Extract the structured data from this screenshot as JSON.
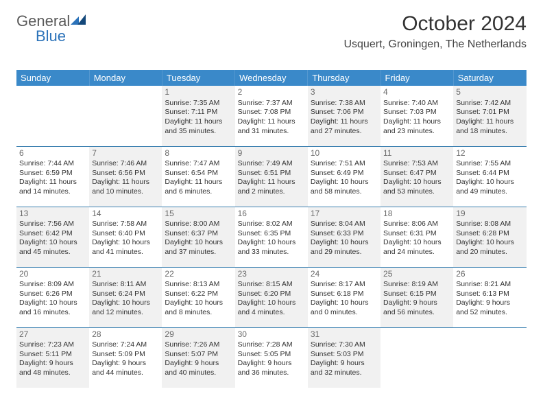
{
  "logo": {
    "part1": "General",
    "part2": "Blue"
  },
  "title": "October 2024",
  "location": "Usquert, Groningen, The Netherlands",
  "weekdays": [
    "Sunday",
    "Monday",
    "Tuesday",
    "Wednesday",
    "Thursday",
    "Friday",
    "Saturday"
  ],
  "colors": {
    "header_bg": "#3a89c9",
    "header_text": "#ffffff",
    "row_border": "#3a7fb0",
    "shade_bg": "#f1f1f1",
    "logo_gray": "#5a5a5a",
    "logo_blue": "#2b72b9"
  },
  "weeks": [
    [
      {
        "day": "",
        "sunrise": "",
        "sunset": "",
        "daylight": "",
        "shade": false,
        "empty": true
      },
      {
        "day": "",
        "sunrise": "",
        "sunset": "",
        "daylight": "",
        "shade": false,
        "empty": true
      },
      {
        "day": "1",
        "sunrise": "Sunrise: 7:35 AM",
        "sunset": "Sunset: 7:11 PM",
        "daylight": "Daylight: 11 hours and 35 minutes.",
        "shade": true
      },
      {
        "day": "2",
        "sunrise": "Sunrise: 7:37 AM",
        "sunset": "Sunset: 7:08 PM",
        "daylight": "Daylight: 11 hours and 31 minutes.",
        "shade": false
      },
      {
        "day": "3",
        "sunrise": "Sunrise: 7:38 AM",
        "sunset": "Sunset: 7:06 PM",
        "daylight": "Daylight: 11 hours and 27 minutes.",
        "shade": true
      },
      {
        "day": "4",
        "sunrise": "Sunrise: 7:40 AM",
        "sunset": "Sunset: 7:03 PM",
        "daylight": "Daylight: 11 hours and 23 minutes.",
        "shade": false
      },
      {
        "day": "5",
        "sunrise": "Sunrise: 7:42 AM",
        "sunset": "Sunset: 7:01 PM",
        "daylight": "Daylight: 11 hours and 18 minutes.",
        "shade": true
      }
    ],
    [
      {
        "day": "6",
        "sunrise": "Sunrise: 7:44 AM",
        "sunset": "Sunset: 6:59 PM",
        "daylight": "Daylight: 11 hours and 14 minutes.",
        "shade": false
      },
      {
        "day": "7",
        "sunrise": "Sunrise: 7:46 AM",
        "sunset": "Sunset: 6:56 PM",
        "daylight": "Daylight: 11 hours and 10 minutes.",
        "shade": true
      },
      {
        "day": "8",
        "sunrise": "Sunrise: 7:47 AM",
        "sunset": "Sunset: 6:54 PM",
        "daylight": "Daylight: 11 hours and 6 minutes.",
        "shade": false
      },
      {
        "day": "9",
        "sunrise": "Sunrise: 7:49 AM",
        "sunset": "Sunset: 6:51 PM",
        "daylight": "Daylight: 11 hours and 2 minutes.",
        "shade": true
      },
      {
        "day": "10",
        "sunrise": "Sunrise: 7:51 AM",
        "sunset": "Sunset: 6:49 PM",
        "daylight": "Daylight: 10 hours and 58 minutes.",
        "shade": false
      },
      {
        "day": "11",
        "sunrise": "Sunrise: 7:53 AM",
        "sunset": "Sunset: 6:47 PM",
        "daylight": "Daylight: 10 hours and 53 minutes.",
        "shade": true
      },
      {
        "day": "12",
        "sunrise": "Sunrise: 7:55 AM",
        "sunset": "Sunset: 6:44 PM",
        "daylight": "Daylight: 10 hours and 49 minutes.",
        "shade": false
      }
    ],
    [
      {
        "day": "13",
        "sunrise": "Sunrise: 7:56 AM",
        "sunset": "Sunset: 6:42 PM",
        "daylight": "Daylight: 10 hours and 45 minutes.",
        "shade": true
      },
      {
        "day": "14",
        "sunrise": "Sunrise: 7:58 AM",
        "sunset": "Sunset: 6:40 PM",
        "daylight": "Daylight: 10 hours and 41 minutes.",
        "shade": false
      },
      {
        "day": "15",
        "sunrise": "Sunrise: 8:00 AM",
        "sunset": "Sunset: 6:37 PM",
        "daylight": "Daylight: 10 hours and 37 minutes.",
        "shade": true
      },
      {
        "day": "16",
        "sunrise": "Sunrise: 8:02 AM",
        "sunset": "Sunset: 6:35 PM",
        "daylight": "Daylight: 10 hours and 33 minutes.",
        "shade": false
      },
      {
        "day": "17",
        "sunrise": "Sunrise: 8:04 AM",
        "sunset": "Sunset: 6:33 PM",
        "daylight": "Daylight: 10 hours and 29 minutes.",
        "shade": true
      },
      {
        "day": "18",
        "sunrise": "Sunrise: 8:06 AM",
        "sunset": "Sunset: 6:31 PM",
        "daylight": "Daylight: 10 hours and 24 minutes.",
        "shade": false
      },
      {
        "day": "19",
        "sunrise": "Sunrise: 8:08 AM",
        "sunset": "Sunset: 6:28 PM",
        "daylight": "Daylight: 10 hours and 20 minutes.",
        "shade": true
      }
    ],
    [
      {
        "day": "20",
        "sunrise": "Sunrise: 8:09 AM",
        "sunset": "Sunset: 6:26 PM",
        "daylight": "Daylight: 10 hours and 16 minutes.",
        "shade": false
      },
      {
        "day": "21",
        "sunrise": "Sunrise: 8:11 AM",
        "sunset": "Sunset: 6:24 PM",
        "daylight": "Daylight: 10 hours and 12 minutes.",
        "shade": true
      },
      {
        "day": "22",
        "sunrise": "Sunrise: 8:13 AM",
        "sunset": "Sunset: 6:22 PM",
        "daylight": "Daylight: 10 hours and 8 minutes.",
        "shade": false
      },
      {
        "day": "23",
        "sunrise": "Sunrise: 8:15 AM",
        "sunset": "Sunset: 6:20 PM",
        "daylight": "Daylight: 10 hours and 4 minutes.",
        "shade": true
      },
      {
        "day": "24",
        "sunrise": "Sunrise: 8:17 AM",
        "sunset": "Sunset: 6:18 PM",
        "daylight": "Daylight: 10 hours and 0 minutes.",
        "shade": false
      },
      {
        "day": "25",
        "sunrise": "Sunrise: 8:19 AM",
        "sunset": "Sunset: 6:15 PM",
        "daylight": "Daylight: 9 hours and 56 minutes.",
        "shade": true
      },
      {
        "day": "26",
        "sunrise": "Sunrise: 8:21 AM",
        "sunset": "Sunset: 6:13 PM",
        "daylight": "Daylight: 9 hours and 52 minutes.",
        "shade": false
      }
    ],
    [
      {
        "day": "27",
        "sunrise": "Sunrise: 7:23 AM",
        "sunset": "Sunset: 5:11 PM",
        "daylight": "Daylight: 9 hours and 48 minutes.",
        "shade": true
      },
      {
        "day": "28",
        "sunrise": "Sunrise: 7:24 AM",
        "sunset": "Sunset: 5:09 PM",
        "daylight": "Daylight: 9 hours and 44 minutes.",
        "shade": false
      },
      {
        "day": "29",
        "sunrise": "Sunrise: 7:26 AM",
        "sunset": "Sunset: 5:07 PM",
        "daylight": "Daylight: 9 hours and 40 minutes.",
        "shade": true
      },
      {
        "day": "30",
        "sunrise": "Sunrise: 7:28 AM",
        "sunset": "Sunset: 5:05 PM",
        "daylight": "Daylight: 9 hours and 36 minutes.",
        "shade": false
      },
      {
        "day": "31",
        "sunrise": "Sunrise: 7:30 AM",
        "sunset": "Sunset: 5:03 PM",
        "daylight": "Daylight: 9 hours and 32 minutes.",
        "shade": true
      },
      {
        "day": "",
        "sunrise": "",
        "sunset": "",
        "daylight": "",
        "shade": false,
        "empty": true
      },
      {
        "day": "",
        "sunrise": "",
        "sunset": "",
        "daylight": "",
        "shade": false,
        "empty": true
      }
    ]
  ]
}
